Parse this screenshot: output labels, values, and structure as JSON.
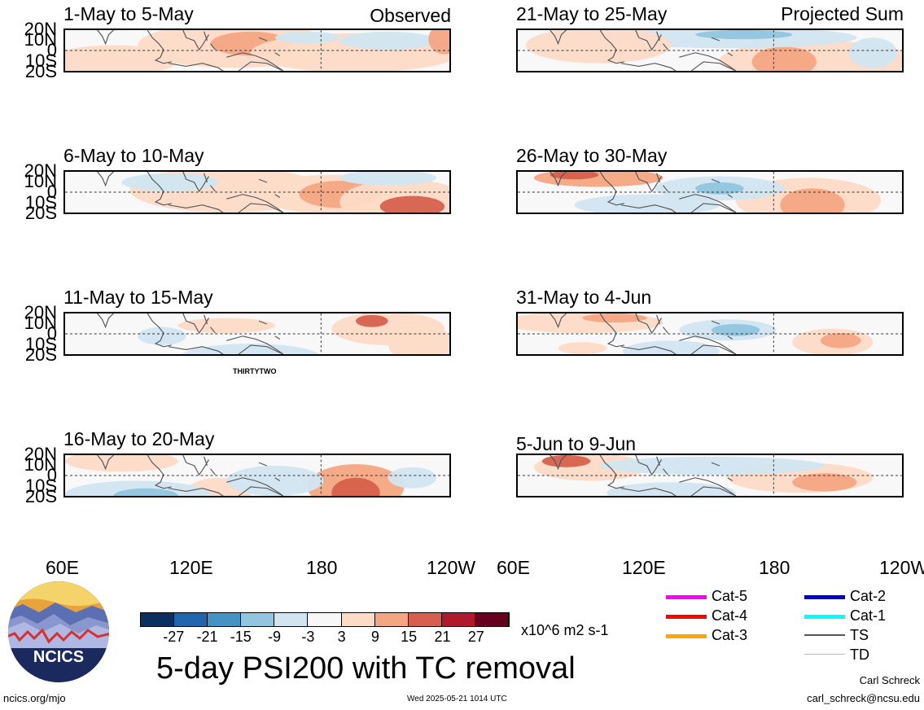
{
  "title": "5-day PSI200 with TC removal",
  "labels": {
    "observed": "Observed",
    "projected": "Projected Sum"
  },
  "panels": [
    {
      "title": "1-May to 5-May"
    },
    {
      "title": "6-May to 10-May"
    },
    {
      "title": "11-May to 15-May",
      "storm_label": "THIRTYTWO"
    },
    {
      "title": "16-May to 20-May"
    },
    {
      "title": "21-May to 25-May"
    },
    {
      "title": "26-May to 30-May"
    },
    {
      "title": "31-May to 4-Jun"
    },
    {
      "title": "5-Jun to 9-Jun"
    }
  ],
  "lat_labels": [
    "20N",
    "10N",
    "0",
    "10S",
    "20S"
  ],
  "lon_labels": [
    "60E",
    "120E",
    "180",
    "120W"
  ],
  "lon_labels_right": [
    "60E",
    "120E",
    "180",
    "120W"
  ],
  "colorbar": {
    "ticks": [
      "-27",
      "-21",
      "-15",
      "-9",
      "-3",
      "3",
      "9",
      "15",
      "21",
      "27"
    ],
    "units": "x10^6 m2 s-1",
    "colors": [
      "#0b2f5e",
      "#2166ac",
      "#4393c3",
      "#92c5de",
      "#d1e5f0",
      "#f7f7f7",
      "#fddbc7",
      "#f4a582",
      "#d6604d",
      "#b2182b",
      "#67001f"
    ]
  },
  "legend": {
    "items": [
      {
        "label": "Cat-5",
        "color": "#ff00ff"
      },
      {
        "label": "Cat-4",
        "color": "#ff0000"
      },
      {
        "label": "Cat-3",
        "color": "#ffa500"
      },
      {
        "label": "Cat-2",
        "color": "#0000cc"
      },
      {
        "label": "Cat-1",
        "color": "#00ffff"
      },
      {
        "label": "TS",
        "color": "#555555"
      },
      {
        "label": "TD",
        "color": "#bbbbbb"
      }
    ]
  },
  "logo": {
    "text": "NCICS"
  },
  "footer": {
    "url": "ncics.org/mjo",
    "timestamp": "Wed 2025-05-21 1014 UTC",
    "author": "Carl Schreck",
    "email": "carl_schreck@ncsu.edu"
  }
}
